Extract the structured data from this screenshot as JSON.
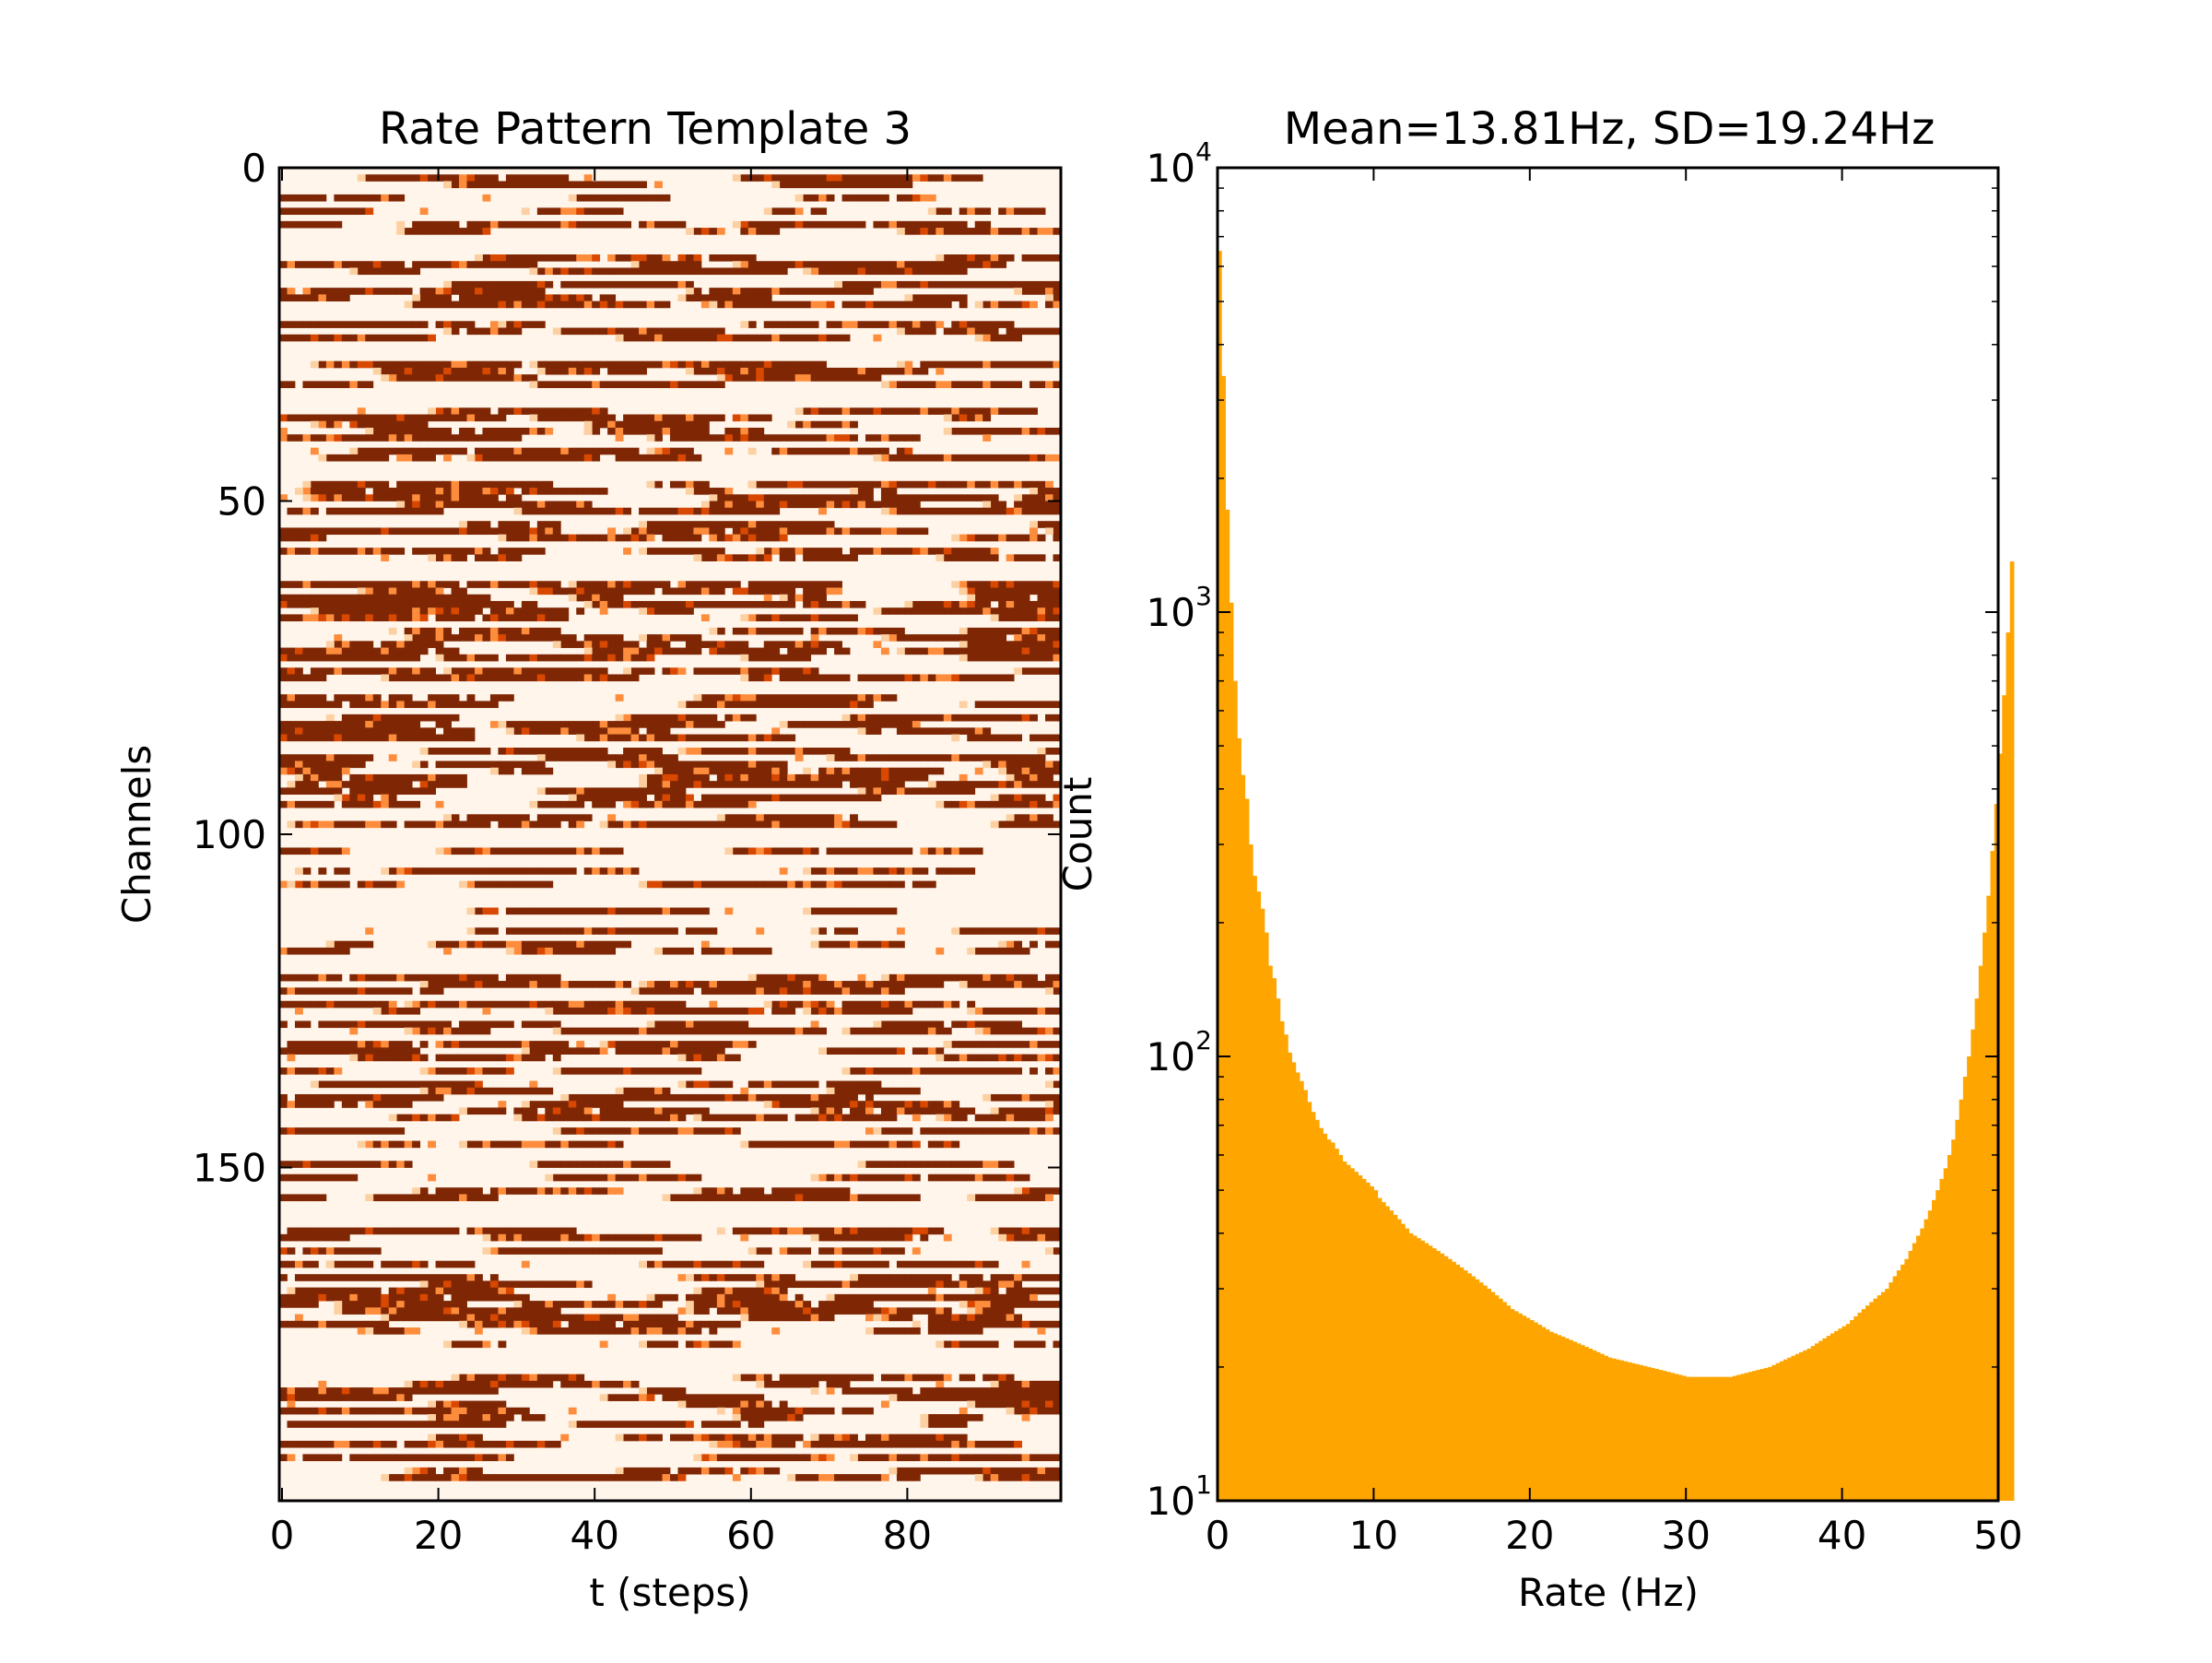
{
  "chart_data": [
    {
      "type": "heatmap",
      "title": "Rate Pattern Template 3",
      "xlabel": "t (steps)",
      "ylabel": "Channels",
      "xlim": [
        0,
        100
      ],
      "ylim": [
        200,
        0
      ],
      "x_ticks": [
        0,
        20,
        40,
        60,
        80
      ],
      "y_ticks": [
        0,
        50,
        100,
        150
      ],
      "n_channels": 200,
      "n_steps": 100,
      "colormap": [
        "#fff5eb",
        "#fdd0a2",
        "#fd8d3c",
        "#d94801",
        "#7f2704"
      ],
      "note_values": "Rate values per channel/time are binary-like (mostly ~0 Hz or ~50 Hz) forming horizontal streaks; individual cell values are not legible."
    },
    {
      "type": "bar",
      "title": "Mean=13.81Hz, SD=19.24Hz",
      "xlabel": "Rate (Hz)",
      "ylabel": "Count",
      "xlim": [
        0,
        50
      ],
      "ylim": [
        10,
        10000
      ],
      "yscale": "log",
      "x_ticks": [
        0,
        10,
        20,
        30,
        40,
        50
      ],
      "y_ticks": [
        10,
        100,
        1000,
        10000
      ],
      "y_tick_labels": [
        {
          "base": "10",
          "exp": "1"
        },
        {
          "base": "10",
          "exp": "2"
        },
        {
          "base": "10",
          "exp": "3"
        },
        {
          "base": "10",
          "exp": "4"
        }
      ],
      "color": "#ffa500",
      "bin_width": 0.25,
      "counts": [
        6500,
        3400,
        1700,
        1050,
        700,
        520,
        430,
        380,
        300,
        255,
        235,
        215,
        190,
        160,
        150,
        135,
        120,
        112,
        102,
        97,
        92,
        88,
        84,
        79,
        75,
        72,
        69,
        67,
        65,
        64,
        62,
        60,
        58,
        57,
        56,
        55,
        54,
        53,
        52,
        51,
        50,
        48,
        47,
        46,
        45,
        44,
        43,
        42,
        41,
        40,
        39.5,
        39,
        38.5,
        38,
        37.5,
        37,
        36.5,
        36,
        35.5,
        35,
        34.5,
        34,
        33.5,
        33,
        32.5,
        32,
        31.5,
        31,
        30.5,
        30,
        29.5,
        29,
        28.5,
        28,
        27.5,
        27,
        26.7,
        26.4,
        26.1,
        25.8,
        25.5,
        25.2,
        24.9,
        24.6,
        24.3,
        24,
        23.8,
        23.6,
        23.4,
        23.2,
        23,
        22.8,
        22.6,
        22.4,
        22.2,
        22,
        21.8,
        21.6,
        21.4,
        21.2,
        21,
        20.9,
        20.8,
        20.7,
        20.6,
        20.5,
        20.4,
        20.3,
        20.2,
        20.1,
        20,
        19.9,
        19.8,
        19.7,
        19.6,
        19.5,
        19.4,
        19.3,
        19.2,
        19.1,
        19,
        19,
        19,
        19,
        19,
        19,
        19,
        19,
        19,
        19,
        19,
        19,
        19.1,
        19.2,
        19.3,
        19.4,
        19.5,
        19.6,
        19.7,
        19.8,
        19.9,
        20,
        20.2,
        20.4,
        20.6,
        20.8,
        21,
        21.2,
        21.4,
        21.6,
        21.8,
        22,
        22.3,
        22.6,
        22.9,
        23.2,
        23.5,
        23.8,
        24.1,
        24.4,
        24.7,
        25,
        25.5,
        26,
        26.5,
        27,
        27.5,
        28,
        28.5,
        29,
        29.5,
        30,
        31,
        32,
        33,
        34,
        35,
        36.5,
        38,
        39.5,
        41,
        43,
        45,
        47.5,
        50,
        53,
        56,
        60,
        65,
        72,
        80,
        90,
        100,
        115,
        135,
        160,
        190,
        230,
        290,
        370,
        480,
        650,
        900,
        1300
      ]
    }
  ]
}
